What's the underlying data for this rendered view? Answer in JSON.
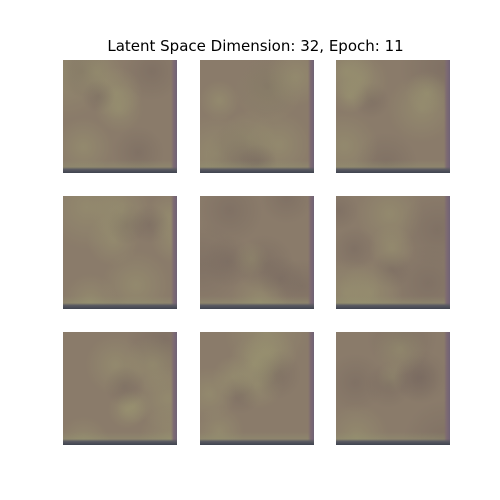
{
  "figure": {
    "title": "Latent Space Dimension: 32, Epoch: 11"
  },
  "grid": {
    "rows": 3,
    "cols": 3,
    "base_color": "#8a7b6a",
    "edge_color_right": "#7d6a72",
    "edge_color_bottom": "#3f4450",
    "highlight_color": "#9b9a70"
  }
}
